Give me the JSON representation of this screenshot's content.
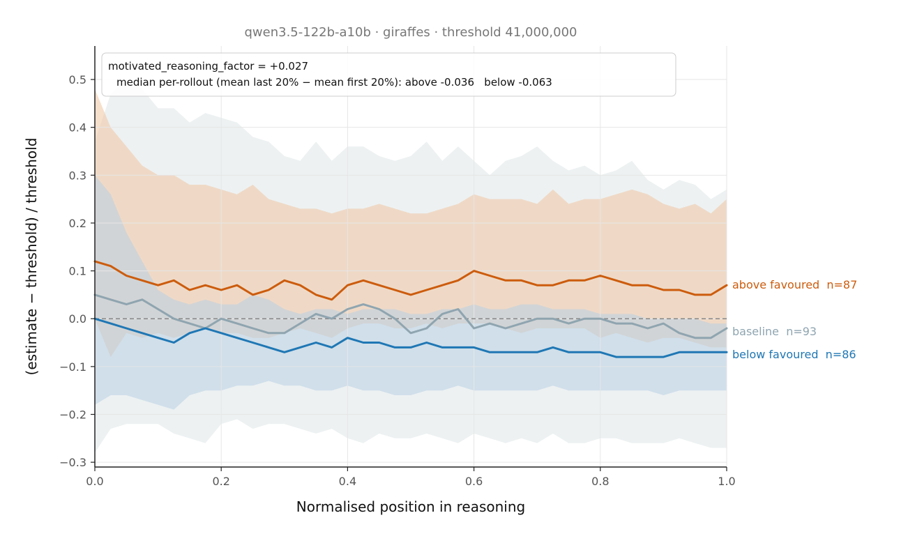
{
  "chart_data": {
    "type": "line",
    "title": "qwen3.5-122b-a10b · giraffes · threshold 41,000,000",
    "xlabel": "Normalised position in reasoning",
    "ylabel": "(estimate − threshold) / threshold",
    "xlim": [
      0.0,
      1.0
    ],
    "ylim": [
      -0.31,
      0.57
    ],
    "xticks": [
      "0.0",
      "0.2",
      "0.4",
      "0.6",
      "0.8",
      "1.0"
    ],
    "yticks": [
      "−0.3",
      "−0.2",
      "−0.1",
      "0.0",
      "0.1",
      "0.2",
      "0.3",
      "0.4",
      "0.5"
    ],
    "grid": true,
    "reference_line": 0.0,
    "annotation": {
      "line1": "motivated_reasoning_factor = +0.027",
      "line2": "median per-rollout (mean last 20% − mean first 20%): above -0.036   below -0.063"
    },
    "x": [
      0.0,
      0.025,
      0.05,
      0.075,
      0.1,
      0.125,
      0.15,
      0.175,
      0.2,
      0.225,
      0.25,
      0.275,
      0.3,
      0.325,
      0.35,
      0.375,
      0.4,
      0.425,
      0.45,
      0.475,
      0.5,
      0.525,
      0.55,
      0.575,
      0.6,
      0.625,
      0.65,
      0.675,
      0.7,
      0.725,
      0.75,
      0.775,
      0.8,
      0.825,
      0.85,
      0.875,
      0.9,
      0.925,
      0.95,
      0.975,
      1.0
    ],
    "series": [
      {
        "name": "above favoured  n=87",
        "label": "above favoured  n=87",
        "color": "#cc5c0d",
        "band_color": "#f0c9a8",
        "values": [
          0.12,
          0.11,
          0.09,
          0.08,
          0.07,
          0.08,
          0.06,
          0.07,
          0.06,
          0.07,
          0.05,
          0.06,
          0.08,
          0.07,
          0.05,
          0.04,
          0.07,
          0.08,
          0.07,
          0.06,
          0.05,
          0.06,
          0.07,
          0.08,
          0.1,
          0.09,
          0.08,
          0.08,
          0.07,
          0.07,
          0.08,
          0.08,
          0.09,
          0.08,
          0.07,
          0.07,
          0.06,
          0.06,
          0.05,
          0.05,
          0.07
        ],
        "lower": [
          0.0,
          -0.08,
          -0.03,
          -0.04,
          -0.03,
          -0.04,
          -0.03,
          -0.02,
          -0.03,
          -0.03,
          -0.04,
          -0.04,
          -0.03,
          -0.02,
          -0.03,
          -0.04,
          -0.02,
          -0.01,
          -0.01,
          -0.02,
          -0.02,
          -0.01,
          -0.02,
          -0.01,
          -0.01,
          -0.01,
          -0.02,
          -0.03,
          -0.02,
          -0.02,
          -0.02,
          -0.02,
          -0.04,
          -0.03,
          -0.04,
          -0.05,
          -0.04,
          -0.04,
          -0.05,
          -0.06,
          -0.06
        ],
        "upper": [
          0.48,
          0.4,
          0.36,
          0.32,
          0.3,
          0.3,
          0.28,
          0.28,
          0.27,
          0.26,
          0.28,
          0.25,
          0.24,
          0.23,
          0.23,
          0.22,
          0.23,
          0.23,
          0.24,
          0.23,
          0.22,
          0.22,
          0.23,
          0.24,
          0.26,
          0.25,
          0.25,
          0.25,
          0.24,
          0.27,
          0.24,
          0.25,
          0.25,
          0.26,
          0.27,
          0.26,
          0.24,
          0.23,
          0.24,
          0.22,
          0.25
        ]
      },
      {
        "name": "baseline  n=93",
        "label": "baseline  n=93",
        "color": "#8fa5b0",
        "band_color": "#dfe5e8",
        "values": [
          0.05,
          0.04,
          0.03,
          0.04,
          0.02,
          0.0,
          -0.01,
          -0.02,
          0.0,
          -0.01,
          -0.02,
          -0.03,
          -0.03,
          -0.01,
          0.01,
          0.0,
          0.02,
          0.03,
          0.02,
          0.0,
          -0.03,
          -0.02,
          0.01,
          0.02,
          -0.02,
          -0.01,
          -0.02,
          -0.01,
          0.0,
          0.0,
          -0.01,
          0.0,
          0.0,
          -0.01,
          -0.01,
          -0.02,
          -0.01,
          -0.03,
          -0.04,
          -0.04,
          -0.02
        ],
        "lower": [
          -0.28,
          -0.23,
          -0.22,
          -0.22,
          -0.22,
          -0.24,
          -0.25,
          -0.26,
          -0.22,
          -0.21,
          -0.23,
          -0.22,
          -0.22,
          -0.23,
          -0.24,
          -0.23,
          -0.25,
          -0.26,
          -0.24,
          -0.25,
          -0.25,
          -0.24,
          -0.25,
          -0.26,
          -0.24,
          -0.25,
          -0.26,
          -0.25,
          -0.26,
          -0.24,
          -0.26,
          -0.26,
          -0.25,
          -0.25,
          -0.26,
          -0.26,
          -0.26,
          -0.25,
          -0.26,
          -0.27,
          -0.27
        ],
        "upper": [
          0.37,
          0.47,
          0.5,
          0.48,
          0.44,
          0.44,
          0.41,
          0.43,
          0.42,
          0.41,
          0.38,
          0.37,
          0.34,
          0.33,
          0.37,
          0.33,
          0.36,
          0.36,
          0.34,
          0.33,
          0.34,
          0.37,
          0.33,
          0.36,
          0.33,
          0.3,
          0.33,
          0.34,
          0.36,
          0.33,
          0.31,
          0.32,
          0.3,
          0.31,
          0.33,
          0.29,
          0.27,
          0.29,
          0.28,
          0.25,
          0.27
        ]
      },
      {
        "name": "below favoured  n=86",
        "label": "below favoured  n=86",
        "color": "#1f77b4",
        "band_color": "#b8d0e4",
        "values": [
          0.0,
          -0.01,
          -0.02,
          -0.03,
          -0.04,
          -0.05,
          -0.03,
          -0.02,
          -0.03,
          -0.04,
          -0.05,
          -0.06,
          -0.07,
          -0.06,
          -0.05,
          -0.06,
          -0.04,
          -0.05,
          -0.05,
          -0.06,
          -0.06,
          -0.05,
          -0.06,
          -0.06,
          -0.06,
          -0.07,
          -0.07,
          -0.07,
          -0.07,
          -0.06,
          -0.07,
          -0.07,
          -0.07,
          -0.08,
          -0.08,
          -0.08,
          -0.08,
          -0.07,
          -0.07,
          -0.07,
          -0.07
        ],
        "lower": [
          -0.18,
          -0.16,
          -0.16,
          -0.17,
          -0.18,
          -0.19,
          -0.16,
          -0.15,
          -0.15,
          -0.14,
          -0.14,
          -0.13,
          -0.14,
          -0.14,
          -0.15,
          -0.15,
          -0.14,
          -0.15,
          -0.15,
          -0.16,
          -0.16,
          -0.15,
          -0.15,
          -0.14,
          -0.15,
          -0.15,
          -0.15,
          -0.15,
          -0.15,
          -0.14,
          -0.15,
          -0.15,
          -0.15,
          -0.15,
          -0.15,
          -0.15,
          -0.16,
          -0.15,
          -0.15,
          -0.15,
          -0.15
        ],
        "upper": [
          0.3,
          0.26,
          0.18,
          0.12,
          0.06,
          0.04,
          0.03,
          0.04,
          0.03,
          0.03,
          0.05,
          0.04,
          0.02,
          0.01,
          0.02,
          0.02,
          0.01,
          0.02,
          0.02,
          0.02,
          0.01,
          0.01,
          0.02,
          0.02,
          0.03,
          0.02,
          0.02,
          0.03,
          0.03,
          0.02,
          0.02,
          0.02,
          0.01,
          0.01,
          0.01,
          0.0,
          0.0,
          0.0,
          0.0,
          -0.01,
          -0.01
        ]
      }
    ]
  }
}
